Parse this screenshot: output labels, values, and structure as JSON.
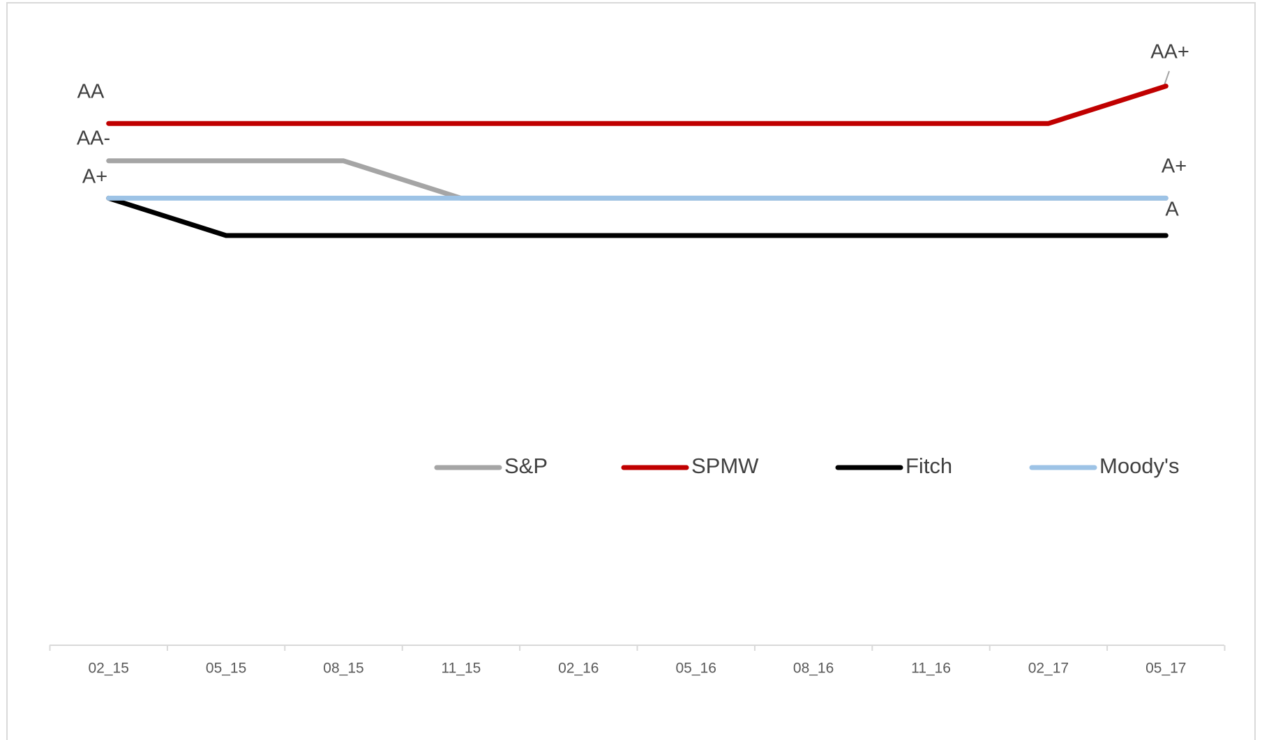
{
  "chart_data": {
    "type": "line",
    "categories": [
      "02_15",
      "05_15",
      "08_15",
      "11_15",
      "02_16",
      "05_16",
      "08_16",
      "11_16",
      "02_17",
      "05_17"
    ],
    "rating_order": [
      "A",
      "A+",
      "AA-",
      "AA",
      "AA+"
    ],
    "series": [
      {
        "name": "S&P",
        "color": "#a5a5a5",
        "values": [
          "AA-",
          "AA-",
          "AA-",
          "A+",
          "A+",
          "A+",
          "A+",
          "A+",
          "A+",
          "A+"
        ]
      },
      {
        "name": "SPMW",
        "color": "#c00000",
        "values": [
          "AA",
          "AA",
          "AA",
          "AA",
          "AA",
          "AA",
          "AA",
          "AA",
          "AA",
          "AA+"
        ]
      },
      {
        "name": "Fitch",
        "color": "#000000",
        "values": [
          "A+",
          "A",
          "A",
          "A",
          "A",
          "A",
          "A",
          "A",
          "A",
          "A"
        ]
      },
      {
        "name": "Moody's",
        "color": "#9dc3e6",
        "values": [
          "A+",
          "A+",
          "A+",
          "A+",
          "A+",
          "A+",
          "A+",
          "A+",
          "A+",
          "A+"
        ]
      }
    ],
    "legend": "middle",
    "grid": false
  }
}
